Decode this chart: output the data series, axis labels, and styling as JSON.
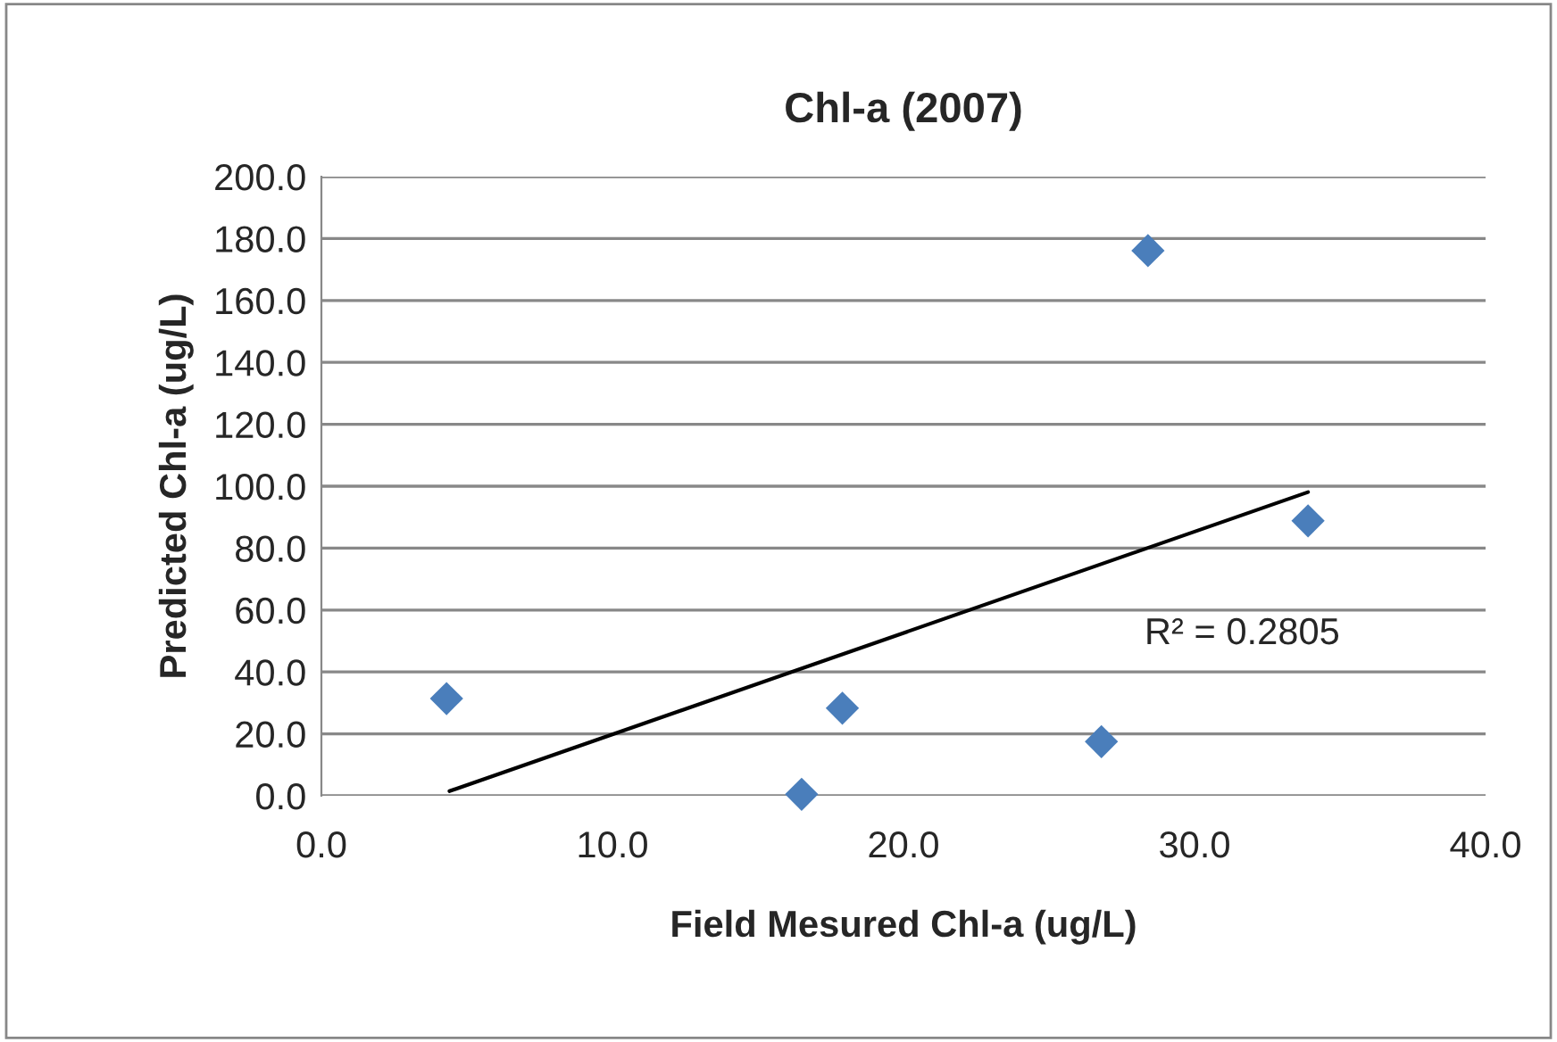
{
  "chart_data": {
    "type": "scatter",
    "title": "Chl-a (2007)",
    "xlabel": "Field Mesured Chl-a (ug/L)",
    "ylabel": "Predicted Chl-a (ug/L)",
    "series": [
      {
        "color": "#4a7ebb",
        "marker": "diamond",
        "x": [
          4.3,
          16.5,
          17.9,
          26.8,
          28.4,
          33.9
        ],
        "values": [
          31.4,
          0.5,
          28.3,
          17.5,
          176.1,
          88.8
        ]
      },
      {
        "type": "line",
        "color": "#000000",
        "marker": "none",
        "line_style": "solid",
        "x": [
          4.4,
          33.9
        ],
        "values": [
          1.5,
          98.1
        ]
      }
    ],
    "xlim": [
      0,
      40
    ],
    "xticks": [
      {
        "value": 0,
        "label": "0.0"
      },
      {
        "value": 10,
        "label": "10.0"
      },
      {
        "value": 20,
        "label": "20.0"
      },
      {
        "value": 30,
        "label": "30.0"
      },
      {
        "value": 40,
        "label": "40.0"
      }
    ],
    "ylim": [
      0,
      200
    ],
    "yticks": [
      {
        "value": 0,
        "label": "0.0"
      },
      {
        "value": 20,
        "label": "20.0"
      },
      {
        "value": 40,
        "label": "40.0"
      },
      {
        "value": 60,
        "label": "60.0"
      },
      {
        "value": 80,
        "label": "80.0"
      },
      {
        "value": 100,
        "label": "100.0"
      },
      {
        "value": 120,
        "label": "120.0"
      },
      {
        "value": 140,
        "label": "140.0"
      },
      {
        "value": 160,
        "label": "160.0"
      },
      {
        "value": 180,
        "label": "180.0"
      },
      {
        "value": 200,
        "label": "200.0"
      }
    ],
    "grid": "y",
    "annotations": [
      "R² = 0.2805"
    ]
  }
}
